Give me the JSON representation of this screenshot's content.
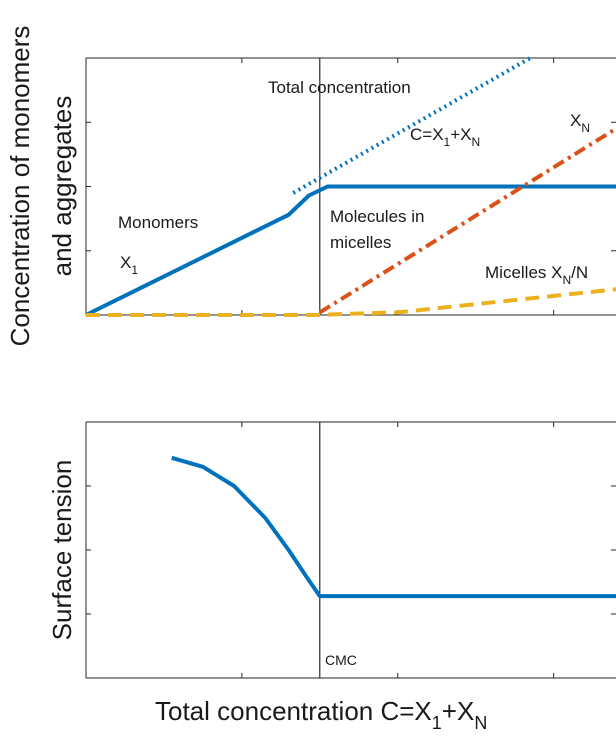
{
  "chart_data": [
    {
      "type": "line",
      "title": "",
      "xlabel": "",
      "ylabel_lines": [
        "Concentration of monomers",
        "and aggregates"
      ],
      "xlim": [
        0,
        3.4
      ],
      "ylim": [
        0,
        2
      ],
      "x_ticks": [
        0,
        1,
        2,
        3
      ],
      "y_ticks": [
        0,
        0.5,
        1,
        1.5,
        2
      ],
      "grid": false,
      "series": [
        {
          "name": "",
          "style": "solid",
          "color": "#0072BD",
          "x": [
            0,
            1.3,
            1.43,
            1.55,
            3.4
          ],
          "y": [
            0,
            0.78,
            0.93,
            1.0,
            1.0
          ]
        },
        {
          "name": "",
          "style": "dotted",
          "color": "#0072BD",
          "x": [
            1.33,
            2.85
          ],
          "y": [
            0.95,
            2.0
          ]
        },
        {
          "name": "",
          "style": "dashdot",
          "color": "#D95319",
          "x": [
            1.5,
            3.4
          ],
          "y": [
            0.02,
            1.45
          ]
        },
        {
          "name": "",
          "style": "dashed",
          "color": "#EDB120",
          "x": [
            0,
            1.48,
            1.7,
            2.0,
            3.4
          ],
          "y": [
            0,
            0.0,
            0.01,
            0.02,
            0.2
          ]
        }
      ],
      "vline_x": 1.5,
      "annotations": {
        "total_concentration": "Total concentration",
        "sum_prefix": "C=X",
        "sum_sub1": "1",
        "sum_mid": "+X",
        "sum_sub2": "N",
        "xn_main": "X",
        "xn_sub": "N",
        "monomers": "Monomers",
        "x1_main": "X",
        "x1_sub": "1",
        "molecules_line1": "Molecules in",
        "molecules_line2": "micelles",
        "micelles_prefix": "Micelles X",
        "micelles_sub": "N",
        "micelles_suffix": "/N"
      }
    },
    {
      "type": "line",
      "title": "",
      "xlabel_main": "Total concentration C=X",
      "xlabel_sub1": "1",
      "xlabel_mid": "+X",
      "xlabel_sub2": "N",
      "ylabel": "Surface tension",
      "xlim": [
        0,
        3.4
      ],
      "ylim": [
        0,
        2
      ],
      "x_ticks": [
        0,
        1,
        2,
        3
      ],
      "y_ticks": [
        0,
        0.5,
        1,
        1.5,
        2
      ],
      "grid": false,
      "series": [
        {
          "name": "",
          "style": "solid",
          "color": "#0072BD",
          "x": [
            0.55,
            0.75,
            0.95,
            1.15,
            1.3,
            1.42,
            1.5,
            3.4
          ],
          "y": [
            1.72,
            1.65,
            1.5,
            1.25,
            1.0,
            0.78,
            0.64,
            0.64
          ]
        }
      ],
      "vline_x": 1.5,
      "annotations": {
        "cmc": "CMC"
      }
    }
  ]
}
